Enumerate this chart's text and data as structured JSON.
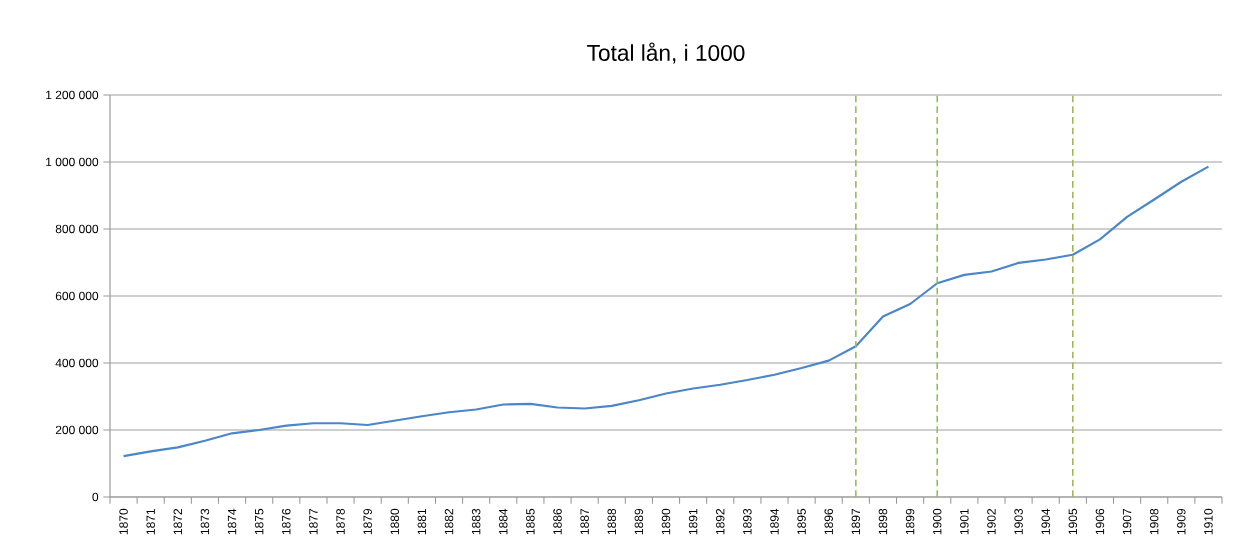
{
  "chart_data": {
    "type": "line",
    "title": "Total lån, i 1000",
    "categories": [
      "1870",
      "1871",
      "1872",
      "1873",
      "1874",
      "1875",
      "1876",
      "1877",
      "1878",
      "1879",
      "1880",
      "1881",
      "1882",
      "1883",
      "1884",
      "1885",
      "1886",
      "1887",
      "1888",
      "1889",
      "1890",
      "1891",
      "1892",
      "1893",
      "1894",
      "1895",
      "1896",
      "1897",
      "1898",
      "1899",
      "1900",
      "1901",
      "1902",
      "1903",
      "1904",
      "1905",
      "1906",
      "1907",
      "1908",
      "1909",
      "1910"
    ],
    "series": [
      {
        "color": "#4a86c8",
        "values": [
          122000,
          136000,
          148000,
          168000,
          190000,
          200000,
          213000,
          220000,
          220000,
          215000,
          228000,
          241000,
          253000,
          261000,
          276000,
          278000,
          267000,
          264000,
          272000,
          289000,
          309000,
          324000,
          335000,
          349000,
          365000,
          385000,
          407000,
          450000,
          539000,
          576000,
          638000,
          663000,
          673000,
          699000,
          709000,
          723000,
          769000,
          836000,
          888000,
          941000,
          986000
        ]
      }
    ],
    "ylim": [
      0,
      1200000
    ],
    "yticks": [
      {
        "value": 0,
        "label": "0"
      },
      {
        "value": 200000,
        "label": "200 000"
      },
      {
        "value": 400000,
        "label": "400 000"
      },
      {
        "value": 600000,
        "label": "600 000"
      },
      {
        "value": 800000,
        "label": "800 000"
      },
      {
        "value": 1000000,
        "label": "1 000 000"
      },
      {
        "value": 1200000,
        "label": "1 200 000"
      }
    ],
    "grid": "y",
    "marker": "none",
    "line_style": "solid",
    "ref_lines": [
      {
        "axis": "x",
        "value": "1897",
        "color": "#9bbb59",
        "line_style": "dashed"
      },
      {
        "axis": "x",
        "value": "1900",
        "color": "#9bbb59",
        "line_style": "dashed"
      },
      {
        "axis": "x",
        "value": "1905",
        "color": "#9bbb59",
        "line_style": "dashed"
      }
    ]
  }
}
